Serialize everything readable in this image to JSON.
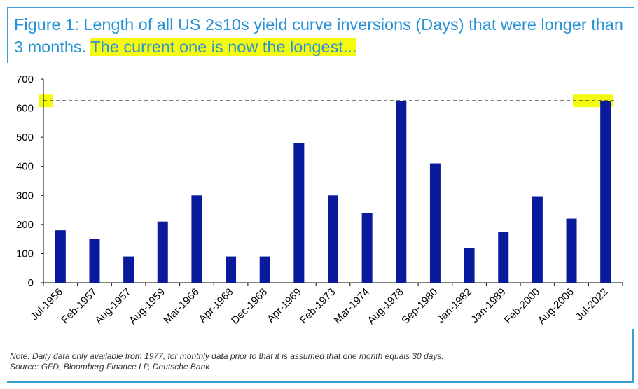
{
  "title": {
    "text": "Figure 1: Length of all US 2s10s yield curve inversions (Days) that were longer than 3 months. ",
    "highlight": "The current one is now the longest..."
  },
  "footnote": {
    "note": "Note: Daily data only available from 1977, for monthly data prior to that it is assumed that one month equals 30 days.",
    "source": "Source: GFD, Bloomberg Finance LP, Deutsche Bank"
  },
  "colors": {
    "bar": "#0a1a9c",
    "highlight": "#f4fa10",
    "title": "#2a93d5",
    "rule": "#3a9fd8"
  },
  "chart_data": {
    "type": "bar",
    "title": "",
    "xlabel": "",
    "ylabel": "",
    "categories": [
      "Jul-1956",
      "Feb-1957",
      "Aug-1957",
      "Aug-1959",
      "Mar-1966",
      "Apr-1968",
      "Dec-1968",
      "Apr-1969",
      "Feb-1973",
      "Mar-1974",
      "Aug-1978",
      "Sep-1980",
      "Jan-1982",
      "Jan-1989",
      "Feb-2000",
      "Aug-2006",
      "Jul-2022"
    ],
    "values": [
      180,
      150,
      90,
      210,
      300,
      90,
      90,
      480,
      300,
      240,
      625,
      410,
      120,
      175,
      297,
      220,
      625
    ],
    "ylim": [
      0,
      700
    ],
    "yticks": [
      0,
      100,
      200,
      300,
      400,
      500,
      600,
      700
    ],
    "reference_line": 625,
    "grid": false,
    "legend": "none"
  }
}
